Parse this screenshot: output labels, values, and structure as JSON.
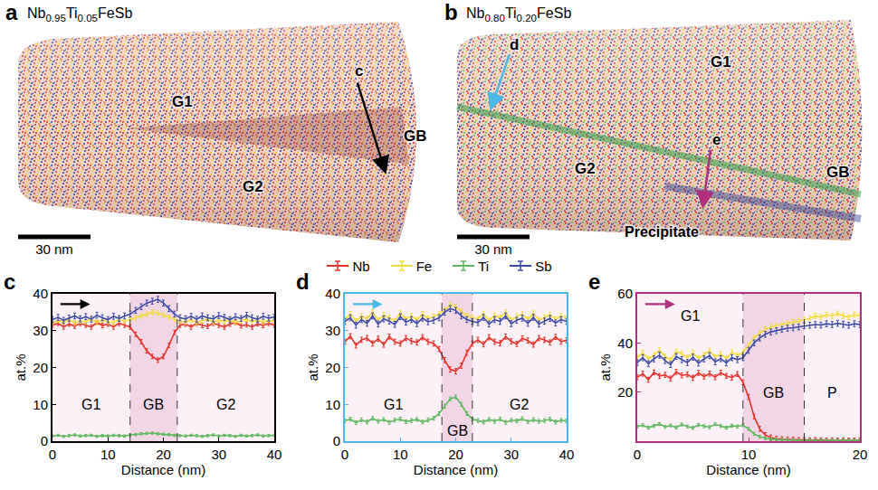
{
  "panels": [
    {
      "panel": "a",
      "title": "Nb0.95Ti0.05FeSb",
      "grains": [
        "G1",
        "G2"
      ],
      "boundary": "GB",
      "arrows": [
        "c"
      ],
      "scale_bar": "30 nm"
    },
    {
      "panel": "b",
      "title": "Nb0.80Ti0.20FeSb",
      "grains": [
        "G1",
        "G2"
      ],
      "boundary": "GB",
      "arrows": [
        "d",
        "e"
      ],
      "precipitate": "Precipitate",
      "scale_bar": "30 nm"
    }
  ],
  "chart_data": [
    {
      "type": "line",
      "panel": "c",
      "color": "#000000",
      "legend": "top",
      "grid": false,
      "x_label": "Distance (nm)",
      "y_label": "at.%",
      "xlim": [
        0,
        40
      ],
      "xticks": [
        0,
        10,
        20,
        30,
        40
      ],
      "ylim": [
        0,
        40
      ],
      "yticks": [
        0,
        10,
        20,
        30,
        40
      ],
      "regions": [
        {
          "label": "G1",
          "from": 0,
          "to": 14
        },
        {
          "label": "GB",
          "from": 14,
          "to": 22.5
        },
        {
          "label": "G2",
          "from": 22.5,
          "to": 40
        }
      ],
      "x": [
        0,
        1,
        2,
        3,
        4,
        5,
        6,
        7,
        8,
        9,
        10,
        11,
        12,
        13,
        14,
        15,
        16,
        17,
        18,
        19,
        20,
        21,
        22,
        23,
        24,
        25,
        26,
        27,
        28,
        29,
        30,
        31,
        32,
        33,
        34,
        35,
        36,
        37,
        38,
        39,
        40
      ],
      "series": [
        {
          "name": "Nb",
          "color": "#e8302a",
          "error": 0.6,
          "values": [
            31.5,
            32,
            31,
            31.8,
            31.2,
            32,
            31.5,
            31,
            32.2,
            31.4,
            31.8,
            31,
            32,
            31.5,
            31,
            29,
            27,
            24.5,
            23,
            22,
            23,
            26,
            29.5,
            31.5,
            31.8,
            31,
            32,
            31.4,
            31.2,
            32,
            31.5,
            31,
            31.8,
            32.2,
            31.3,
            31.6,
            31,
            31.9,
            31.4,
            32,
            31.5
          ]
        },
        {
          "name": "Fe",
          "color": "#f2dc3a",
          "error": 0.6,
          "values": [
            32,
            32.8,
            32.3,
            33,
            32.1,
            32.6,
            32.4,
            33.1,
            32.2,
            32.9,
            32.5,
            32.1,
            33,
            32.6,
            33,
            33.5,
            34,
            34.5,
            35,
            34.8,
            34.2,
            33.6,
            33,
            32.5,
            32.4,
            32.9,
            32.1,
            32.7,
            33.2,
            32.3,
            32.8,
            32.5,
            33,
            32.2,
            32.6,
            33.1,
            32.4,
            32.8,
            32.3,
            32.9,
            32.5
          ]
        },
        {
          "name": "Ti",
          "color": "#5cb85c",
          "error": 0.3,
          "values": [
            1.4,
            1.6,
            1.3,
            1.5,
            1.7,
            1.4,
            1.5,
            1.6,
            1.3,
            1.5,
            1.4,
            1.6,
            1.5,
            1.4,
            1.7,
            1.8,
            2.0,
            2.1,
            2.2,
            2.0,
            1.9,
            1.8,
            1.6,
            1.5,
            1.4,
            1.6,
            1.5,
            1.3,
            1.5,
            1.7,
            1.4,
            1.6,
            1.5,
            1.3,
            1.6,
            1.4,
            1.5,
            1.7,
            1.4,
            1.5,
            1.6
          ]
        },
        {
          "name": "Sb",
          "color": "#3b4aa8",
          "error": 0.8,
          "values": [
            33,
            33.6,
            32.8,
            33.4,
            34,
            33.2,
            33.8,
            33.1,
            34.2,
            33.5,
            33,
            33.9,
            33.3,
            34,
            34.5,
            35.5,
            36.5,
            37.5,
            38,
            38.5,
            37.5,
            36,
            34.5,
            33.5,
            33.2,
            33.9,
            33.1,
            34,
            33.5,
            33.2,
            34.1,
            33.6,
            33,
            33.8,
            33.3,
            34.2,
            33.5,
            33.1,
            33.9,
            33.4,
            33.7
          ]
        }
      ]
    },
    {
      "type": "line",
      "panel": "d",
      "color": "#4db8e8",
      "grid": false,
      "x_label": "Distance (nm)",
      "y_label": "at.%",
      "xlim": [
        0,
        40
      ],
      "xticks": [
        0,
        10,
        20,
        30,
        40
      ],
      "ylim": [
        0,
        40
      ],
      "yticks": [
        0,
        10,
        20,
        30,
        40
      ],
      "regions": [
        {
          "label": "G1",
          "from": 0,
          "to": 17.5
        },
        {
          "label": "GB",
          "from": 17.5,
          "to": 23
        },
        {
          "label": "G2",
          "from": 23,
          "to": 40
        }
      ],
      "x": [
        0,
        1,
        2,
        3,
        4,
        5,
        6,
        7,
        8,
        9,
        10,
        11,
        12,
        13,
        14,
        15,
        16,
        17,
        18,
        19,
        20,
        21,
        22,
        23,
        24,
        25,
        26,
        27,
        28,
        29,
        30,
        31,
        32,
        33,
        34,
        35,
        36,
        37,
        38,
        39,
        40
      ],
      "series": [
        {
          "name": "Nb",
          "color": "#e8302a",
          "error": 0.7,
          "values": [
            27,
            28.5,
            26,
            27.5,
            28,
            26.5,
            27.8,
            26.2,
            28.4,
            27,
            26.5,
            28,
            27.2,
            26.8,
            28.2,
            27,
            26.5,
            25,
            22,
            19.5,
            19,
            20.5,
            24,
            26.5,
            27.5,
            26.3,
            28.2,
            27,
            26.6,
            28.4,
            27.1,
            26.4,
            27.9,
            27.3,
            26.2,
            28,
            27.5,
            26.8,
            28.3,
            27,
            27.4
          ]
        },
        {
          "name": "Fe",
          "color": "#f2dc3a",
          "error": 0.7,
          "values": [
            33,
            34.5,
            32.5,
            34,
            33.2,
            35,
            32.8,
            34.2,
            33.5,
            32.6,
            34.8,
            33.1,
            34,
            32.9,
            34.5,
            33.3,
            33.8,
            34.5,
            35.5,
            37,
            36.5,
            35.2,
            34,
            33.5,
            33.2,
            34.6,
            32.7,
            34.1,
            33.5,
            35,
            32.8,
            33.9,
            34.4,
            33,
            34.7,
            32.9,
            33.6,
            34.3,
            33.1,
            34,
            33.5
          ]
        },
        {
          "name": "Ti",
          "color": "#5cb85c",
          "error": 0.5,
          "values": [
            5.5,
            6,
            5,
            5.8,
            5.2,
            6.2,
            5.4,
            5.9,
            5.1,
            5.7,
            6,
            5.3,
            5.6,
            5.9,
            5.2,
            5.8,
            6.2,
            7.5,
            9.5,
            11.5,
            12,
            10,
            7.5,
            6,
            5.6,
            5.2,
            5.9,
            5.4,
            6,
            5.1,
            5.7,
            5.5,
            6.1,
            5.3,
            5.8,
            5.4,
            5.6,
            6,
            5.2,
            5.7,
            5.5
          ]
        },
        {
          "name": "Sb",
          "color": "#3b4aa8",
          "error": 0.8,
          "values": [
            32.5,
            33.5,
            31.5,
            33,
            32,
            34,
            31.8,
            33.2,
            32.6,
            31.7,
            33.8,
            32.3,
            33,
            31.9,
            33.4,
            32.4,
            32.8,
            33.5,
            35,
            36,
            35.5,
            34,
            33,
            32.5,
            32.2,
            33.6,
            31.8,
            33,
            32.5,
            34,
            31.9,
            32.8,
            33.4,
            32,
            33.6,
            31.8,
            32.6,
            33.3,
            32.1,
            33,
            32.5
          ]
        }
      ]
    },
    {
      "type": "line",
      "panel": "e",
      "color": "#b0307f",
      "grid": false,
      "x_label": "Distance (nm)",
      "y_label": "at.%",
      "xlim": [
        0,
        20
      ],
      "xticks": [
        0,
        10,
        20
      ],
      "ylim": [
        0,
        60
      ],
      "yticks": [
        20,
        40,
        60
      ],
      "regions": [
        {
          "label": "G1",
          "from": 0,
          "to": 9.5
        },
        {
          "label": "GB",
          "from": 9.5,
          "to": 15
        },
        {
          "label": "P",
          "from": 15,
          "to": 20
        }
      ],
      "x": [
        0,
        0.5,
        1,
        1.5,
        2,
        2.5,
        3,
        3.5,
        4,
        4.5,
        5,
        5.5,
        6,
        6.5,
        7,
        7.5,
        8,
        8.5,
        9,
        9.5,
        10,
        10.5,
        11,
        11.5,
        12,
        12.5,
        13,
        13.5,
        14,
        14.5,
        15,
        15.5,
        16,
        16.5,
        17,
        17.5,
        18,
        18.5,
        19,
        19.5,
        20
      ],
      "series": [
        {
          "name": "Nb",
          "color": "#e8302a",
          "error": 1,
          "values": [
            26,
            27.5,
            25,
            28,
            26.5,
            27,
            25.5,
            28.2,
            26.8,
            27.2,
            25.8,
            27.8,
            26.3,
            27.5,
            26,
            27.9,
            26.6,
            25.9,
            27.3,
            24,
            18,
            10,
            5,
            2.5,
            1.5,
            1,
            0.8,
            0.7,
            0.6,
            0.5,
            0.5,
            0.4,
            0.5,
            0.4,
            0.3,
            0.4,
            0.3,
            0.4,
            0.3,
            0.3,
            0.4
          ]
        },
        {
          "name": "Fe",
          "color": "#f2dc3a",
          "error": 1,
          "values": [
            34,
            36,
            33.5,
            35,
            37,
            34.5,
            33,
            36.5,
            35.5,
            34,
            36,
            33.8,
            35.2,
            36.8,
            34.2,
            35.5,
            33.6,
            36.2,
            35,
            36,
            39,
            42,
            44,
            45.5,
            46.5,
            47,
            47.5,
            48,
            48.5,
            49,
            49.5,
            50,
            51,
            50.5,
            51.5,
            51,
            52,
            51,
            50.5,
            51.5,
            51
          ]
        },
        {
          "name": "Ti",
          "color": "#5cb85c",
          "error": 0.6,
          "values": [
            6,
            6.5,
            5.5,
            6.2,
            7,
            5.8,
            6.4,
            5.6,
            6.8,
            6,
            5.4,
            6.6,
            6.1,
            5.7,
            6.9,
            6.2,
            5.5,
            6.3,
            6,
            6.5,
            5,
            3,
            1.8,
            1.2,
            0.8,
            0.6,
            0.5,
            0.4,
            0.4,
            0.3,
            0.3,
            0.3,
            0.2,
            0.3,
            0.2,
            0.3,
            0.2,
            0.3,
            0.3,
            0.2,
            0.3
          ]
        },
        {
          "name": "Sb",
          "color": "#3b4aa8",
          "error": 1.2,
          "values": [
            32,
            34,
            31.5,
            33.5,
            35,
            32.8,
            31.2,
            34.5,
            33.2,
            32,
            34.2,
            31.8,
            33.5,
            34.8,
            32.3,
            33.6,
            31.9,
            34,
            33.2,
            34,
            37,
            40,
            42,
            43.5,
            44.5,
            45,
            45.5,
            46,
            46.2,
            46.5,
            47,
            47.2,
            47.5,
            47.3,
            47.8,
            47.5,
            48,
            47.6,
            47.2,
            47.8,
            47.5
          ]
        }
      ]
    }
  ]
}
